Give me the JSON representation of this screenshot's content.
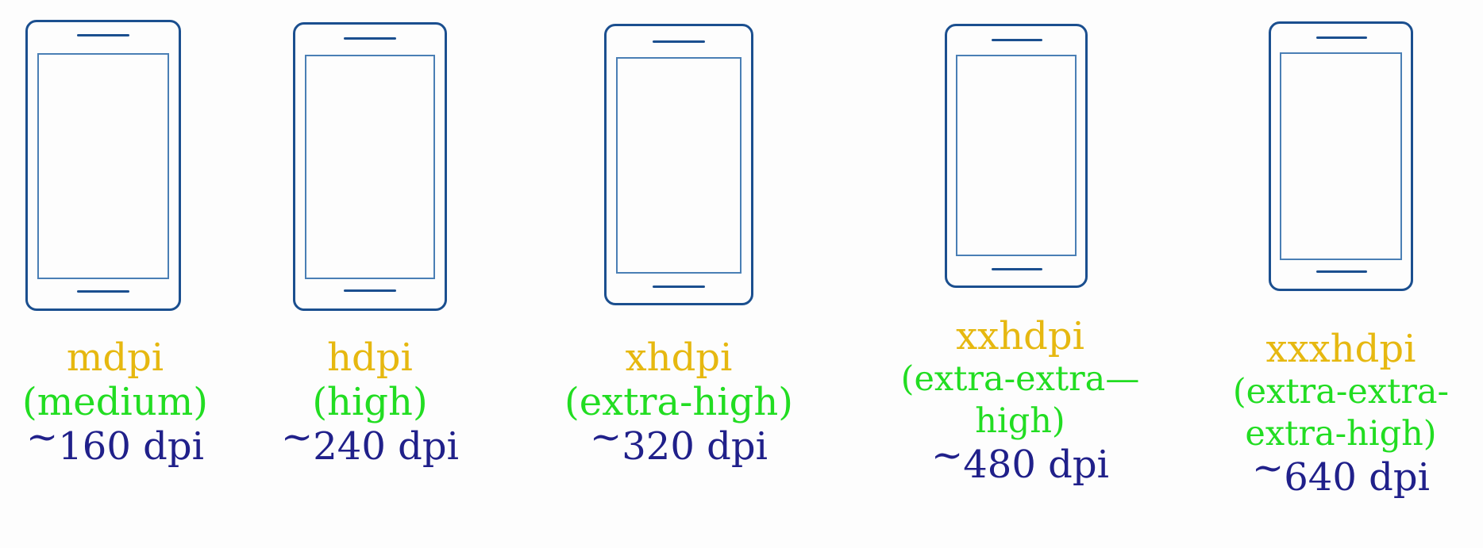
{
  "colors": {
    "outline": "#1b4f8f",
    "name": "#e6b810",
    "description": "#22dd22",
    "dpi": "#20208a"
  },
  "icon": "smartphone-icon",
  "densities": [
    {
      "name": "mdpi",
      "description": [
        "(medium)"
      ],
      "tilde": "~",
      "dpi": "160 dpi"
    },
    {
      "name": "hdpi",
      "description": [
        "(high)"
      ],
      "tilde": "~",
      "dpi": "240 dpi"
    },
    {
      "name": "xhdpi",
      "description": [
        "(extra-high)"
      ],
      "tilde": "~",
      "dpi": "320 dpi"
    },
    {
      "name": "xxhdpi",
      "description": [
        "(extra-extra—",
        "high)"
      ],
      "tilde": "~",
      "dpi": "480 dpi"
    },
    {
      "name": "xxxhdpi",
      "description": [
        "(extra-extra-",
        "extra-high)"
      ],
      "tilde": "~",
      "dpi": "640 dpi"
    }
  ]
}
